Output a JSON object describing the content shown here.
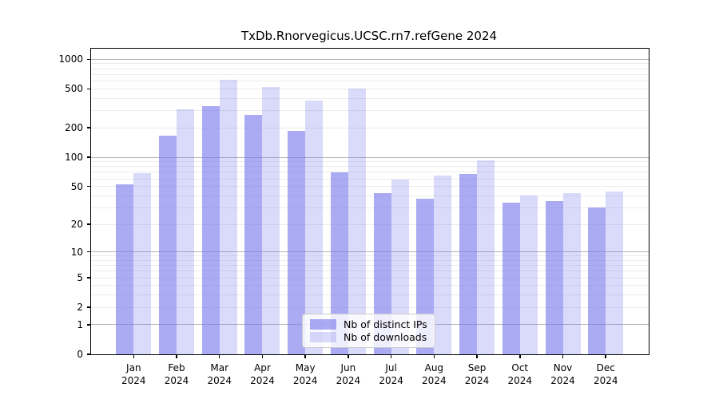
{
  "title": "TxDb.Rnorvegicus.UCSC.rn7.refGene 2024",
  "chart_data": {
    "type": "bar",
    "title": "TxDb.Rnorvegicus.UCSC.rn7.refGene 2024",
    "xlabel": "",
    "ylabel": "",
    "year": "2024",
    "categories": [
      "Jan",
      "Feb",
      "Mar",
      "Apr",
      "May",
      "Jun",
      "Jul",
      "Aug",
      "Sep",
      "Oct",
      "Nov",
      "Dec"
    ],
    "series": [
      {
        "name": "Nb of distinct IPs",
        "color": "rgba(119,119,238,0.62)",
        "values": [
          53,
          168,
          335,
          270,
          188,
          70,
          43,
          37,
          67,
          34,
          35,
          30
        ]
      },
      {
        "name": "Nb of downloads",
        "color": "rgba(119,119,238,0.27)",
        "values": [
          68,
          310,
          620,
          525,
          377,
          500,
          59,
          65,
          93,
          40,
          43,
          44
        ]
      }
    ],
    "yscale": "log10(value+1)",
    "ylim": [
      0,
      1280
    ],
    "yticks": [
      0,
      1,
      2,
      5,
      10,
      20,
      50,
      100,
      200,
      500,
      1000
    ],
    "grid": true,
    "gridline_major_color": "#b4b4b4",
    "gridline_minor_color": "#ececec",
    "legend_position": "bottom-center"
  },
  "legend": {
    "items": [
      {
        "label": "Nb of distinct IPs"
      },
      {
        "label": "Nb of downloads"
      }
    ]
  }
}
